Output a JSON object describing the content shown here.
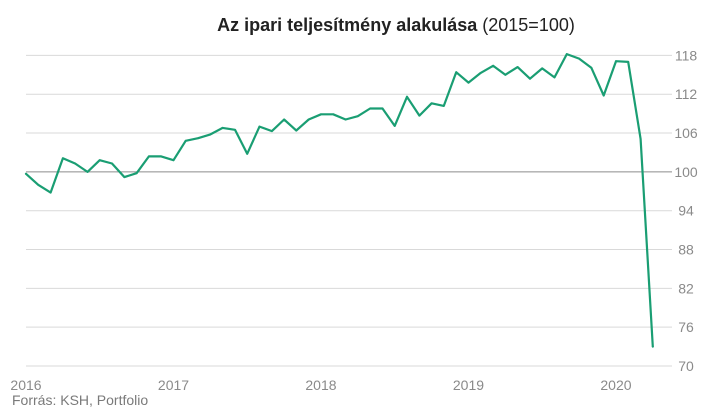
{
  "chart_data": {
    "type": "line",
    "title_bold": "Az ipari teljesítmény alakulása",
    "title_rest": " (2015=100)",
    "source": "Forrás: KSH, Portfolio",
    "ylim": [
      70,
      121
    ],
    "yticks": [
      70,
      76,
      82,
      88,
      94,
      100,
      106,
      112,
      118
    ],
    "ytick_labels": [
      "70",
      "76",
      "82",
      "88",
      "94",
      "100",
      "106",
      "112",
      "118"
    ],
    "reference_line": 100,
    "xlim": [
      2016.0,
      2020.38
    ],
    "xticks": [
      2016,
      2017,
      2018,
      2019,
      2020
    ],
    "xtick_labels": [
      "2016",
      "2017",
      "2018",
      "2019",
      "2020"
    ],
    "grid": true,
    "colors": {
      "line": "#1a9e73",
      "grid": "#d9d9d9",
      "baseline": "#8c8c8c"
    },
    "series": [
      {
        "x": [
          2016.0,
          2016.083,
          2016.167,
          2016.25,
          2016.333,
          2016.417,
          2016.5,
          2016.583,
          2016.667,
          2016.75,
          2016.833,
          2016.917,
          2017.0,
          2017.083,
          2017.167,
          2017.25,
          2017.333,
          2017.417,
          2017.5,
          2017.583,
          2017.667,
          2017.75,
          2017.833,
          2017.917,
          2018.0,
          2018.083,
          2018.167,
          2018.25,
          2018.333,
          2018.417,
          2018.5,
          2018.583,
          2018.667,
          2018.75,
          2018.833,
          2018.917,
          2019.0,
          2019.083,
          2019.167,
          2019.25,
          2019.333,
          2019.417,
          2019.5,
          2019.583,
          2019.667,
          2019.75,
          2019.833,
          2019.917,
          2020.0,
          2020.083,
          2020.167,
          2020.25
        ],
        "values": [
          99.7,
          98.0,
          96.8,
          102.1,
          101.3,
          100.0,
          101.8,
          101.3,
          99.2,
          99.8,
          102.4,
          102.4,
          101.8,
          104.8,
          105.2,
          105.8,
          106.8,
          106.5,
          102.8,
          107.0,
          106.3,
          108.1,
          106.4,
          108.1,
          108.9,
          108.9,
          108.1,
          108.6,
          109.8,
          109.8,
          107.1,
          111.6,
          108.7,
          110.6,
          110.2,
          115.4,
          113.8,
          115.3,
          116.4,
          115.0,
          116.2,
          114.4,
          116.0,
          114.6,
          118.2,
          117.5,
          116.1,
          111.8,
          117.1,
          117.0,
          105.1,
          73.0
        ]
      }
    ]
  }
}
